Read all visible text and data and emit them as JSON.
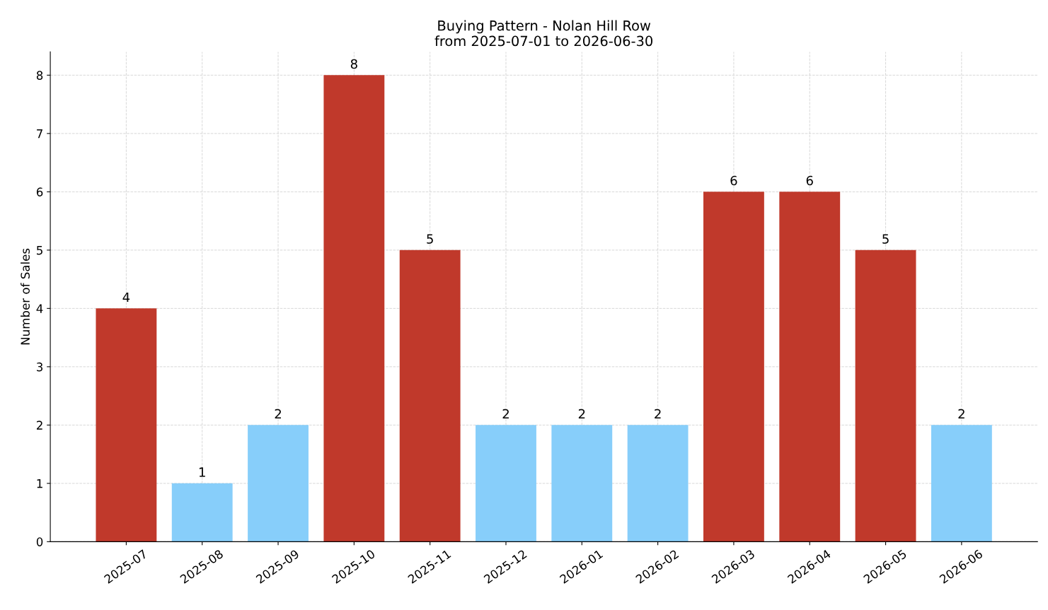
{
  "chart_data": {
    "type": "bar",
    "title": "Buying Pattern - Nolan Hill Row\nfrom 2025-07-01 to 2026-06-30",
    "ylabel": "Number of Sales",
    "categories": [
      "2025-07",
      "2025-08",
      "2025-09",
      "2025-10",
      "2025-11",
      "2025-12",
      "2026-01",
      "2026-02",
      "2026-03",
      "2026-04",
      "2026-05",
      "2026-06"
    ],
    "values": [
      4,
      1,
      2,
      8,
      5,
      2,
      2,
      2,
      6,
      6,
      5,
      2
    ],
    "colors": [
      "#c0392b",
      "#87cefa",
      "#87cefa",
      "#c0392b",
      "#c0392b",
      "#87cefa",
      "#87cefa",
      "#87cefa",
      "#c0392b",
      "#c0392b",
      "#c0392b",
      "#87cefa"
    ],
    "ylim": [
      0,
      8.4
    ],
    "yticks": [
      0,
      1,
      2,
      3,
      4,
      5,
      6,
      7,
      8
    ],
    "grid": true,
    "data_labels": true,
    "legend": false
  }
}
